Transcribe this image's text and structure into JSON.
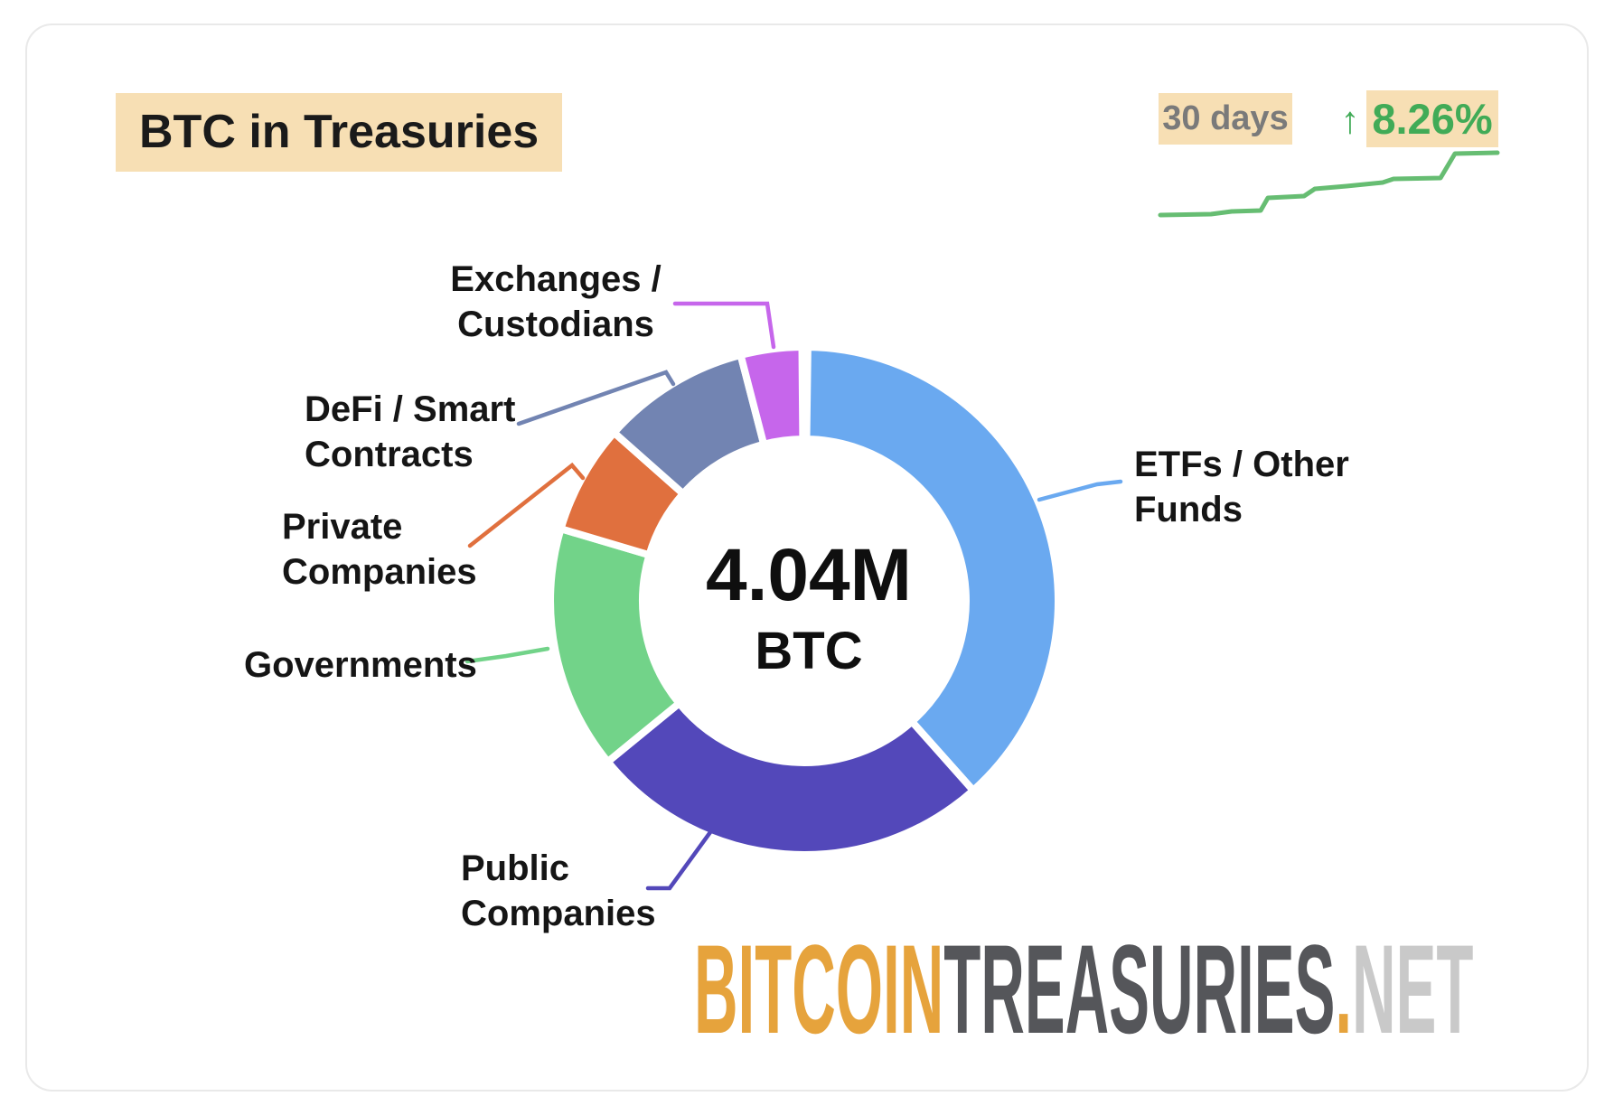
{
  "card": {
    "title": "BTC in Treasuries",
    "highlight_bg": "#f7dfb4",
    "border_color": "#e9e9e9"
  },
  "trend": {
    "period_label": "30 days",
    "period_color": "#7a7a7a",
    "arrow": "↑",
    "change_label": "8.26%",
    "change_color": "#41ab57",
    "badge_bg": "#f7dfb4",
    "sparkline_color": "#66bd72"
  },
  "donut": {
    "center_value": "4.04M",
    "center_unit": "BTC"
  },
  "chart_data": {
    "type": "pie",
    "title": "BTC in Treasuries",
    "total_label": "4.04M BTC",
    "donut_hole_ratio": 0.64,
    "legend_position": "callouts-around-donut",
    "segments": [
      {
        "label": "ETFs / Other Funds",
        "color": "#6aa9f0",
        "start_deg": 0.8,
        "end_deg": 138.3,
        "percent": 38.2
      },
      {
        "label": "Public Companies",
        "color": "#5348ba",
        "start_deg": 138.3,
        "end_deg": 230.7,
        "percent": 25.7
      },
      {
        "label": "Governments",
        "color": "#72d389",
        "start_deg": 230.7,
        "end_deg": 286.5,
        "percent": 15.5
      },
      {
        "label": "Private Companies",
        "color": "#e0703e",
        "start_deg": 286.5,
        "end_deg": 311.5,
        "percent": 6.9
      },
      {
        "label": "DeFi / Smart Contracts",
        "color": "#7284b2",
        "start_deg": 311.5,
        "end_deg": 345.5,
        "percent": 9.4
      },
      {
        "label": "Exchanges / Custodians",
        "color": "#c666eb",
        "start_deg": 345.5,
        "end_deg": 359.5,
        "percent": 4.0
      }
    ],
    "sparkline_trend": "rising-steps-over-30-days"
  },
  "callouts": [
    {
      "line1": "Exchanges /",
      "line2": "Custodians"
    },
    {
      "line1": "DeFi / Smart",
      "line2": "Contracts"
    },
    {
      "line1": "Private",
      "line2": "Companies"
    },
    {
      "line1": "Governments",
      "line2": ""
    },
    {
      "line1": "Public",
      "line2": "Companies"
    },
    {
      "line1": "ETFs / Other",
      "line2": "Funds"
    }
  ],
  "logo": {
    "part1": "BITCOIN",
    "part2": "TREASURIES",
    "dot": ".",
    "part3": "NET",
    "part1_color": "#e6a33c",
    "part2_color": "#55565a",
    "part3_color": "#c9c9c9"
  }
}
